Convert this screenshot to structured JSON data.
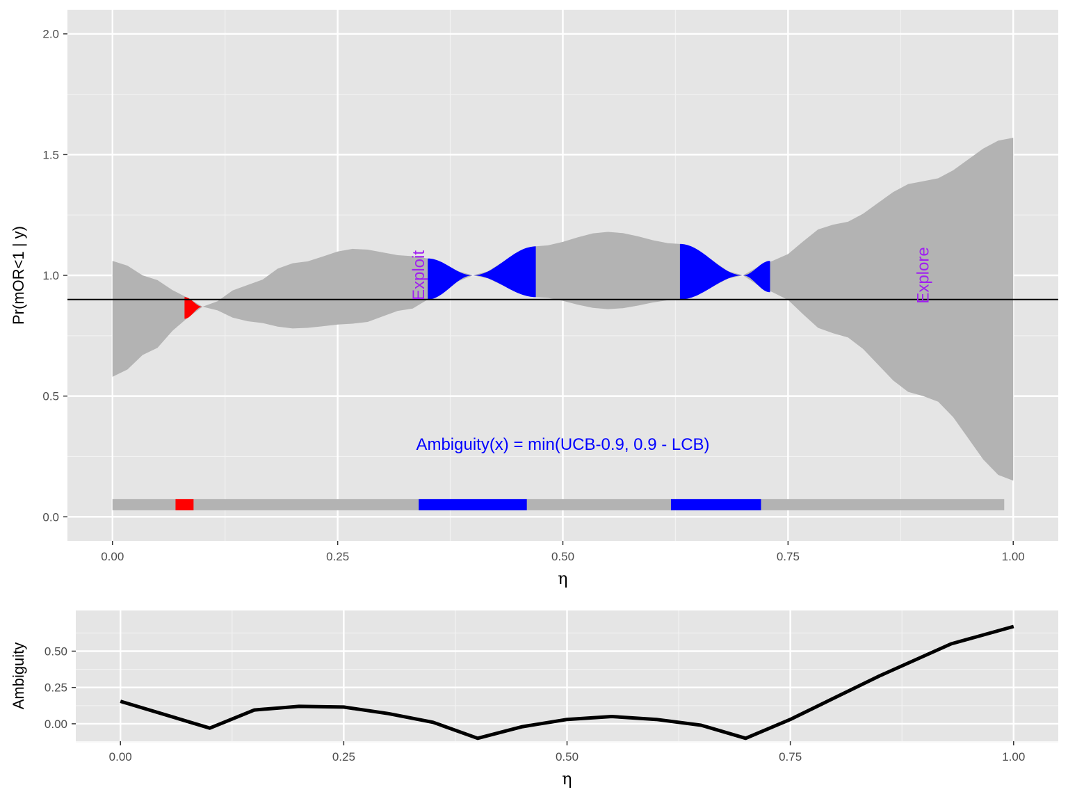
{
  "chart_data": [
    {
      "type": "area",
      "xlabel": "η",
      "ylabel": "Pr(mOR<1 | y)",
      "xlim": [
        -0.05,
        1.05
      ],
      "ylim": [
        -0.1,
        2.1
      ],
      "x_ticks": [
        0.0,
        0.25,
        0.5,
        0.75,
        1.0
      ],
      "x_tick_labels": [
        "0.00",
        "0.25",
        "0.50",
        "0.75",
        "1.00"
      ],
      "y_ticks": [
        0.0,
        0.5,
        1.0,
        1.5,
        2.0
      ],
      "y_tick_labels": [
        "0.0",
        "0.5",
        "1.0",
        "1.5",
        "2.0"
      ],
      "grid": true,
      "threshold": 0.9,
      "band_points": [
        {
          "x": 0.0,
          "lcb": 0.58,
          "ucb": 1.06
        },
        {
          "x": 0.05,
          "lcb": 0.7,
          "ucb": 0.98
        },
        {
          "x": 0.08,
          "lcb": 0.82,
          "ucb": 0.91
        },
        {
          "x": 0.1,
          "lcb": 0.87,
          "ucb": 0.87
        },
        {
          "x": 0.15,
          "lcb": 0.81,
          "ucb": 0.96
        },
        {
          "x": 0.2,
          "lcb": 0.78,
          "ucb": 1.05
        },
        {
          "x": 0.27,
          "lcb": 0.8,
          "ucb": 1.11
        },
        {
          "x": 0.33,
          "lcb": 0.86,
          "ucb": 1.08
        },
        {
          "x": 0.35,
          "lcb": 0.9,
          "ucb": 1.07
        },
        {
          "x": 0.4,
          "lcb": 1.0,
          "ucb": 1.0
        },
        {
          "x": 0.47,
          "lcb": 0.91,
          "ucb": 1.12
        },
        {
          "x": 0.55,
          "lcb": 0.86,
          "ucb": 1.18
        },
        {
          "x": 0.63,
          "lcb": 0.9,
          "ucb": 1.13
        },
        {
          "x": 0.7,
          "lcb": 1.0,
          "ucb": 1.0
        },
        {
          "x": 0.73,
          "lcb": 0.93,
          "ucb": 1.06
        },
        {
          "x": 0.8,
          "lcb": 0.76,
          "ucb": 1.21
        },
        {
          "x": 0.9,
          "lcb": 0.5,
          "ucb": 1.39
        },
        {
          "x": 1.0,
          "lcb": 0.15,
          "ucb": 1.57
        }
      ],
      "highlight_regions": [
        {
          "from": 0.08,
          "to": 0.1,
          "color": "#ff0000"
        },
        {
          "from": 0.35,
          "to": 0.47,
          "color": "#0000ff"
        },
        {
          "from": 0.63,
          "to": 0.73,
          "color": "#0000ff"
        }
      ],
      "summary_bar": {
        "y": 0.05,
        "from": 0.0,
        "to": 0.99,
        "segments": [
          {
            "from": 0.07,
            "to": 0.09,
            "color": "#ff0000"
          },
          {
            "from": 0.34,
            "to": 0.46,
            "color": "#0000ff"
          },
          {
            "from": 0.62,
            "to": 0.72,
            "color": "#0000ff"
          }
        ]
      },
      "annotations": [
        {
          "text": "Exploit",
          "x": 0.34,
          "y": 1.0
        },
        {
          "text": "Explore",
          "x": 0.9,
          "y": 1.0
        },
        {
          "text": "Ambiguity(x) = min(UCB-0.9, 0.9 - LCB)",
          "x": 0.5,
          "y": 0.3
        }
      ],
      "colors": {
        "band": "#b3b3b3",
        "threshold": "#000000",
        "exploit_label": "#a020f0",
        "formula": "#0000ff",
        "panel_bg": "#e5e5e5"
      }
    },
    {
      "type": "line",
      "xlabel": "η",
      "ylabel": "Ambiguity",
      "xlim": [
        -0.05,
        1.05
      ],
      "ylim": [
        -0.12,
        0.78
      ],
      "x_ticks": [
        0.0,
        0.25,
        0.5,
        0.75,
        1.0
      ],
      "x_tick_labels": [
        "0.00",
        "0.25",
        "0.50",
        "0.75",
        "1.00"
      ],
      "y_ticks": [
        0.0,
        0.25,
        0.5
      ],
      "y_tick_labels": [
        "0.00",
        "0.25",
        "0.50"
      ],
      "grid": true,
      "series": [
        {
          "x": [
            0.0,
            0.1,
            0.15,
            0.2,
            0.25,
            0.3,
            0.35,
            0.4,
            0.45,
            0.5,
            0.55,
            0.6,
            0.65,
            0.7,
            0.75,
            0.8,
            0.85,
            0.93,
            1.0
          ],
          "values": [
            0.155,
            -0.03,
            0.095,
            0.12,
            0.115,
            0.07,
            0.01,
            -0.1,
            -0.02,
            0.03,
            0.05,
            0.03,
            -0.01,
            -0.1,
            0.03,
            0.18,
            0.33,
            0.55,
            0.67
          ],
          "color": "#000000"
        }
      ]
    }
  ]
}
